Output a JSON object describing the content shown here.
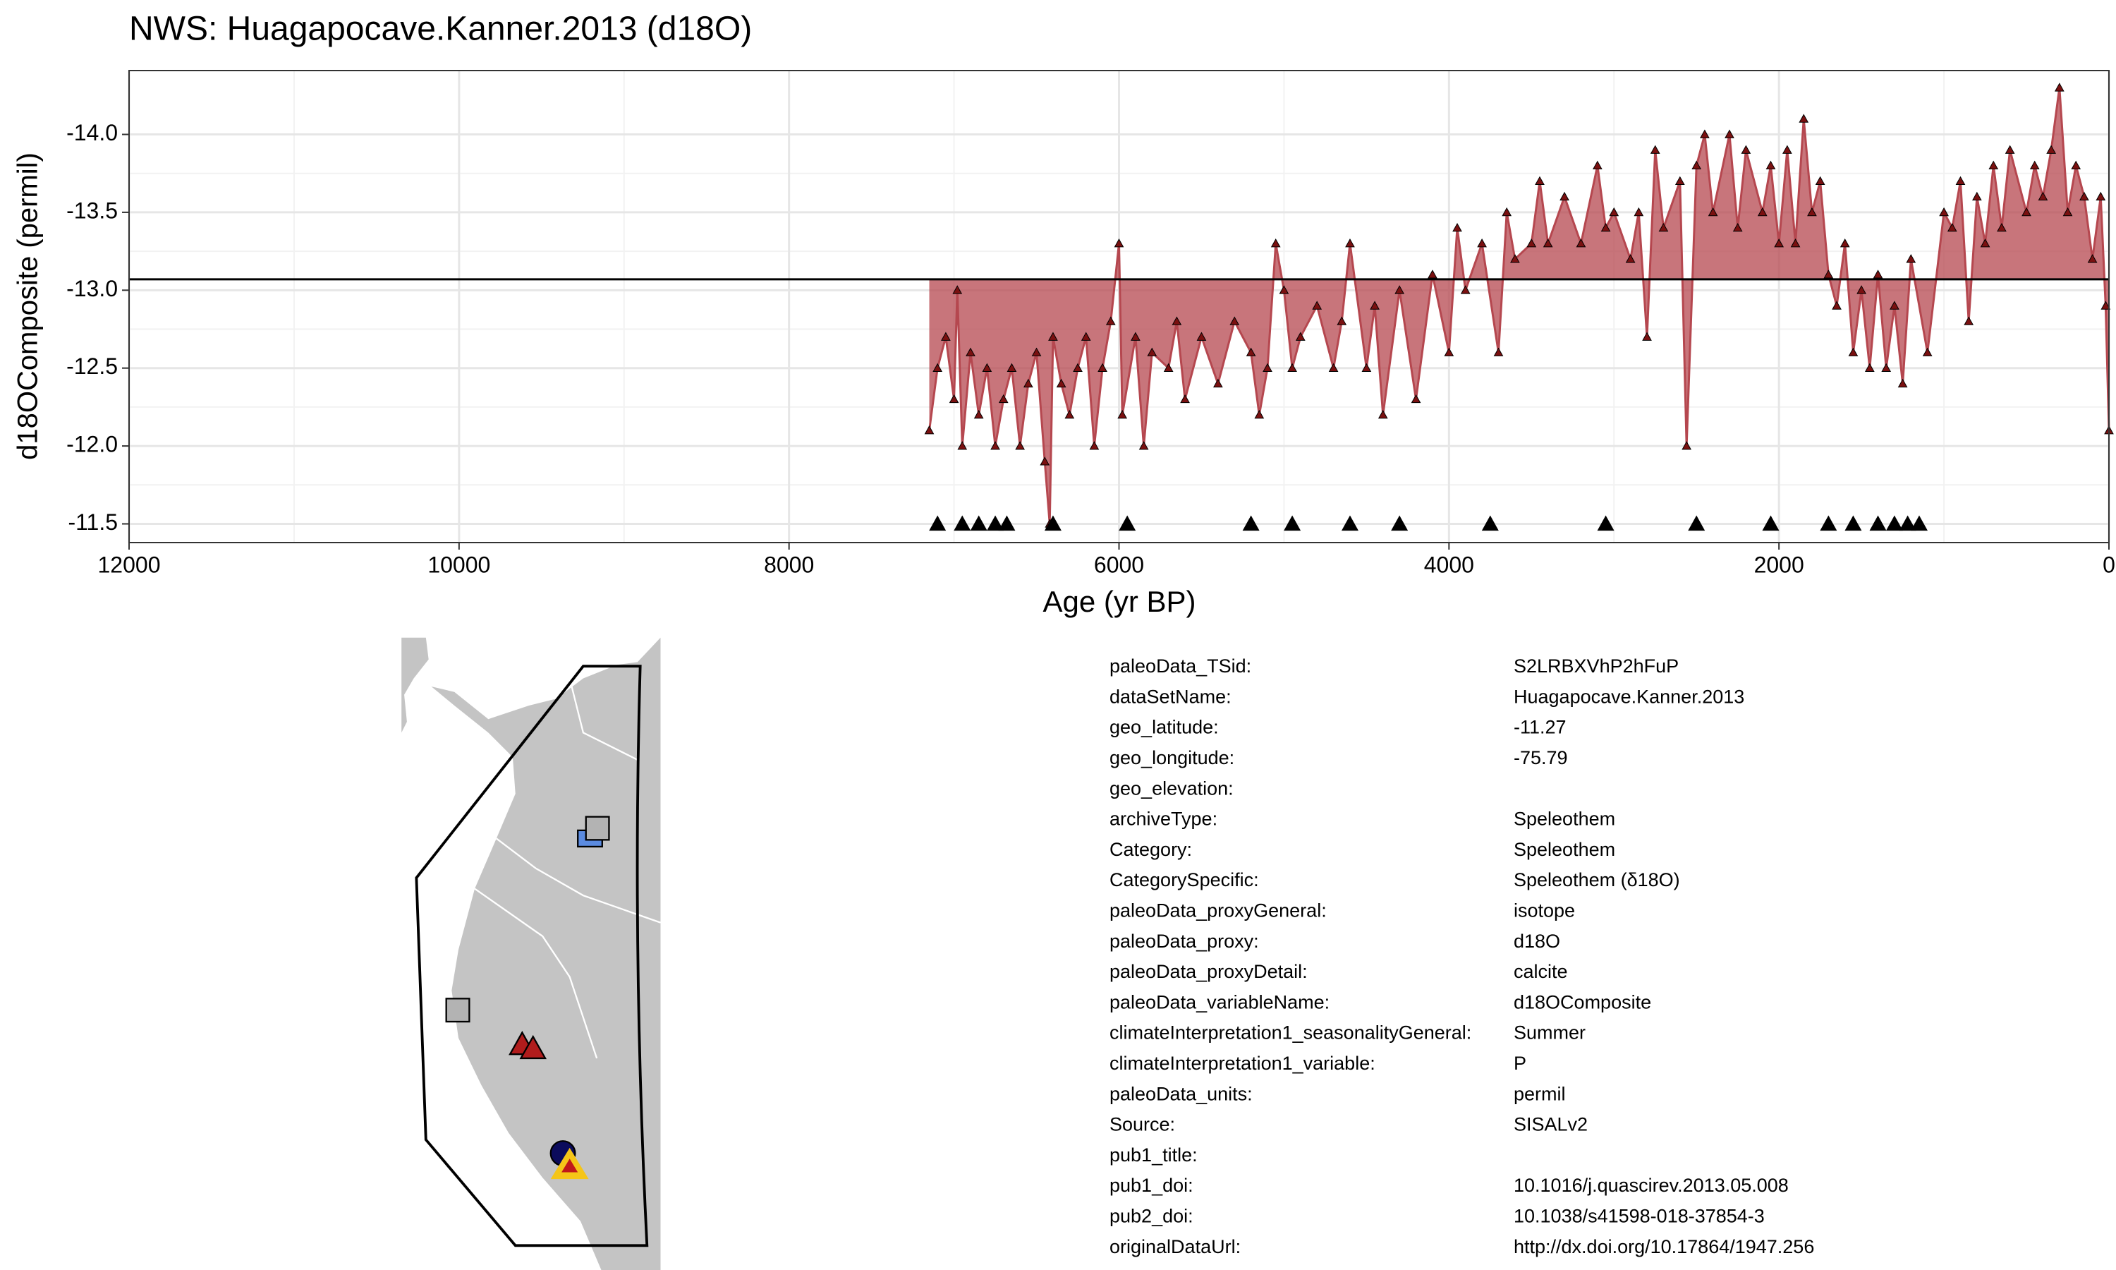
{
  "chart_data": {
    "type": "line",
    "title": "NWS: Huagapocave.Kanner.2013 (d18O)",
    "x_label": "Age (yr BP)",
    "y_label": "d18OComposite (permil)",
    "xlim": [
      0,
      12000
    ],
    "x_reversed": true,
    "xticks": [
      12000,
      10000,
      8000,
      6000,
      4000,
      2000,
      0
    ],
    "ylim": [
      -14.41,
      -11.38
    ],
    "y_reversed": true,
    "yticks": [
      {
        "value": -14,
        "label": "-14.0"
      },
      -13.5,
      {
        "value": -13,
        "label": "-13.0"
      },
      -12.5,
      {
        "value": -12,
        "label": "-12.0"
      },
      -11.5
    ],
    "grid": true,
    "mean": -13.07,
    "color": "#b5474f",
    "marker_color": "#7a1010",
    "x": [
      7150,
      7100,
      7050,
      7000,
      6980,
      6950,
      6900,
      6850,
      6800,
      6750,
      6700,
      6650,
      6600,
      6550,
      6500,
      6450,
      6420,
      6400,
      6350,
      6300,
      6250,
      6200,
      6150,
      6100,
      6050,
      6000,
      5980,
      5900,
      5850,
      5800,
      5700,
      5650,
      5600,
      5500,
      5400,
      5300,
      5200,
      5150,
      5100,
      5050,
      5000,
      4950,
      4900,
      4800,
      4700,
      4650,
      4600,
      4500,
      4450,
      4400,
      4300,
      4200,
      4100,
      4000,
      3950,
      3900,
      3800,
      3700,
      3650,
      3600,
      3500,
      3450,
      3400,
      3300,
      3200,
      3100,
      3050,
      3000,
      2900,
      2850,
      2800,
      2750,
      2700,
      2600,
      2560,
      2500,
      2450,
      2400,
      2300,
      2250,
      2200,
      2100,
      2050,
      2000,
      1950,
      1900,
      1850,
      1800,
      1750,
      1700,
      1650,
      1600,
      1550,
      1500,
      1450,
      1400,
      1350,
      1300,
      1250,
      1200,
      1100,
      1000,
      950,
      900,
      850,
      800,
      750,
      700,
      650,
      600,
      500,
      450,
      400,
      350,
      300,
      250,
      200,
      150,
      100,
      50,
      20,
      0
    ],
    "values": [
      -12.1,
      -12.5,
      -12.7,
      -12.3,
      -13.0,
      -12.0,
      -12.6,
      -12.2,
      -12.5,
      -12.0,
      -12.3,
      -12.5,
      -12.0,
      -12.4,
      -12.6,
      -11.9,
      -11.5,
      -12.7,
      -12.4,
      -12.2,
      -12.5,
      -12.7,
      -12.0,
      -12.5,
      -12.8,
      -13.3,
      -12.2,
      -12.7,
      -12.0,
      -12.6,
      -12.5,
      -12.8,
      -12.3,
      -12.7,
      -12.4,
      -12.8,
      -12.6,
      -12.2,
      -12.5,
      -13.3,
      -13.0,
      -12.5,
      -12.7,
      -12.9,
      -12.5,
      -12.8,
      -13.3,
      -12.5,
      -12.9,
      -12.2,
      -13.0,
      -12.3,
      -13.1,
      -12.6,
      -13.4,
      -13.0,
      -13.3,
      -12.6,
      -13.5,
      -13.2,
      -13.3,
      -13.7,
      -13.3,
      -13.6,
      -13.3,
      -13.8,
      -13.4,
      -13.5,
      -13.2,
      -13.5,
      -12.7,
      -13.9,
      -13.4,
      -13.7,
      -12.0,
      -13.8,
      -14.0,
      -13.5,
      -14.0,
      -13.4,
      -13.9,
      -13.5,
      -13.8,
      -13.3,
      -13.9,
      -13.3,
      -14.1,
      -13.5,
      -13.7,
      -13.1,
      -12.9,
      -13.3,
      -12.6,
      -13.0,
      -12.5,
      -13.1,
      -12.5,
      -12.9,
      -12.4,
      -13.2,
      -12.6,
      -13.5,
      -13.4,
      -13.7,
      -12.8,
      -13.6,
      -13.3,
      -13.8,
      -13.4,
      -13.9,
      -13.5,
      -13.8,
      -13.6,
      -13.9,
      -14.3,
      -13.5,
      -13.8,
      -13.6,
      -13.2,
      -13.6,
      -12.9,
      -12.1
    ],
    "age_control": {
      "x": [
        7100,
        6950,
        6850,
        6750,
        6680,
        6400,
        5950,
        5200,
        4950,
        4600,
        4300,
        3750,
        3050,
        2500,
        2050,
        1700,
        1550,
        1400,
        1300,
        1220,
        1150
      ],
      "y": [
        -11.5,
        -11.5,
        -11.5,
        -11.5,
        -11.5,
        -11.5,
        -11.5,
        -11.5,
        -11.5,
        -11.5,
        -11.5,
        -11.5,
        -11.5,
        -11.5,
        -11.5,
        -11.5,
        -11.5,
        -11.5,
        -11.5,
        -11.5,
        -11.5
      ]
    }
  },
  "table": {
    "rows": [
      [
        "paleoData_TSid:",
        "S2LRBXVhP2hFuP"
      ],
      [
        "dataSetName:",
        "Huagapocave.Kanner.2013"
      ],
      [
        "geo_latitude:",
        "-11.27"
      ],
      [
        "geo_longitude:",
        "-75.79"
      ],
      [
        "geo_elevation:"
      ],
      [
        "archiveType:",
        "Speleothem"
      ],
      [
        "Category:",
        "Speleothem"
      ],
      [
        "CategorySpecific:",
        "Speleothem (δ18O)"
      ],
      [
        "paleoData_proxyGeneral:",
        "isotope"
      ],
      [
        "paleoData_proxy:",
        "d18O"
      ],
      [
        "paleoData_proxyDetail:",
        "calcite"
      ],
      [
        "paleoData_variableName:",
        "d18OComposite"
      ],
      [
        "climateInterpretation1_seasonalityGeneral:",
        "Summer"
      ],
      [
        "climateInterpretation1_variable:",
        "P"
      ],
      [
        "paleoData_units:",
        "permil"
      ],
      [
        "Source:",
        "SISALv2"
      ],
      [
        "pub1_title:"
      ],
      [
        "pub1_doi:",
        "10.1016/j.quascirev.2013.05.008"
      ],
      [
        "pub2_doi:",
        "10.1038/s41598-018-37854-3"
      ],
      [
        "originalDataUrl:",
        "http://dx.doi.org/10.17864/1947.256"
      ]
    ]
  }
}
